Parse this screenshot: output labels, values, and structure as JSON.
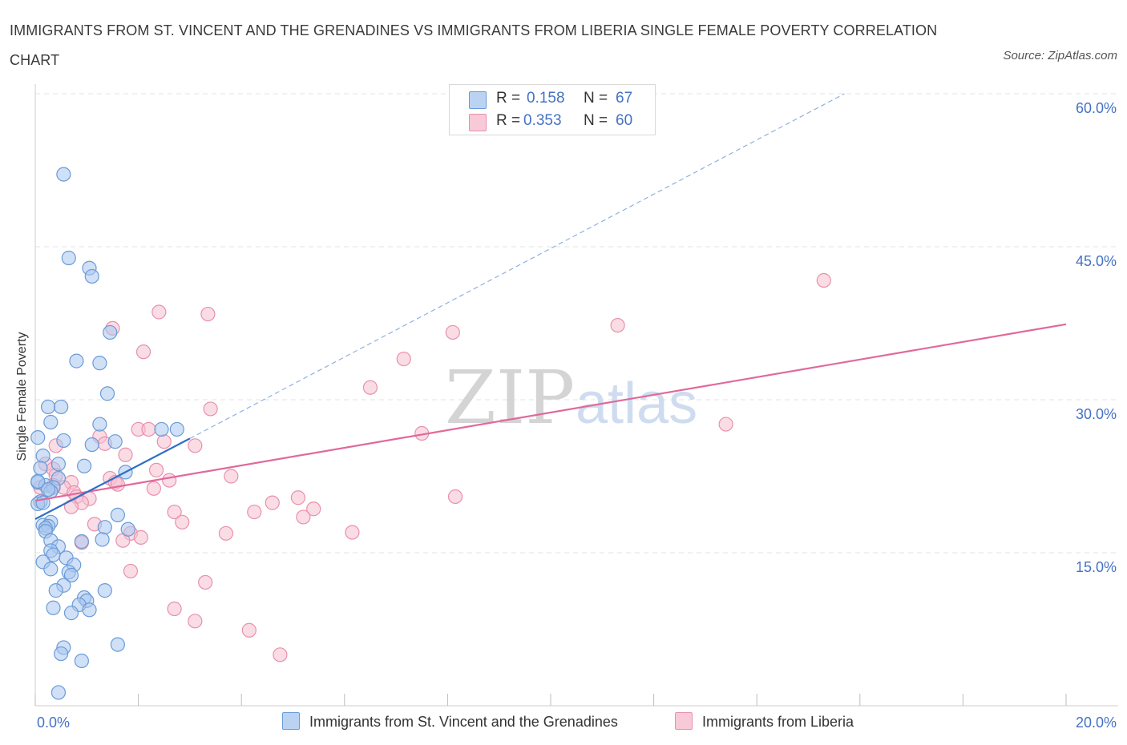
{
  "title": "IMMIGRANTS FROM ST. VINCENT AND THE GRENADINES VS IMMIGRANTS FROM LIBERIA SINGLE FEMALE POVERTY CORRELATION CHART",
  "source": "Source: ZipAtlas.com",
  "watermark": {
    "zip": "ZIP",
    "atlas": "atlas"
  },
  "colors": {
    "blue_fill": "#a9c7ef",
    "blue_stroke": "#6a9bd8",
    "blue_line": "#2f6fc7",
    "pink_fill": "#f6bfd0",
    "pink_stroke": "#e890ad",
    "pink_line": "#e0699a",
    "tick_text": "#4472c4",
    "grid": "#e3e3e3"
  },
  "legend": {
    "rows": [
      {
        "r_label": "R = ",
        "r_value": "0.158",
        "n_label": "N = ",
        "n_value": "67"
      },
      {
        "r_label": "R = ",
        "r_value": "0.353",
        "n_label": "N = ",
        "n_value": "60"
      }
    ]
  },
  "chart_data": {
    "type": "scatter",
    "xlabel": "",
    "ylabel": "Single Female Poverty",
    "xlim": [
      0,
      20
    ],
    "ylim": [
      0,
      60
    ],
    "x_ticks": [
      "0.0%",
      "20.0%"
    ],
    "y_ticks": [
      "15.0%",
      "30.0%",
      "45.0%",
      "60.0%"
    ],
    "y_tick_values": [
      15,
      30,
      45,
      60
    ],
    "grid": true,
    "legend_position": "top-center",
    "series": [
      {
        "name": "Immigrants from St. Vincent and the Grenadines",
        "color": "blue",
        "r": 0.158,
        "n": 67,
        "trend": {
          "x0": 0,
          "y0": 18.3,
          "x1": 3,
          "y1": 26.2,
          "dashed_to_x": 15.7,
          "dashed_to_y": 60
        },
        "points": [
          [
            0.55,
            52.1
          ],
          [
            0.65,
            43.9
          ],
          [
            1.05,
            42.9
          ],
          [
            1.1,
            42.1
          ],
          [
            1.45,
            36.6
          ],
          [
            0.8,
            33.8
          ],
          [
            1.25,
            33.6
          ],
          [
            1.4,
            30.6
          ],
          [
            0.25,
            29.3
          ],
          [
            0.5,
            29.3
          ],
          [
            0.3,
            27.8
          ],
          [
            1.25,
            27.6
          ],
          [
            2.45,
            27.1
          ],
          [
            2.75,
            27.1
          ],
          [
            0.05,
            26.3
          ],
          [
            0.55,
            26.0
          ],
          [
            1.1,
            25.6
          ],
          [
            1.55,
            25.9
          ],
          [
            0.15,
            24.5
          ],
          [
            0.1,
            23.3
          ],
          [
            0.45,
            23.7
          ],
          [
            0.95,
            23.5
          ],
          [
            1.75,
            22.9
          ],
          [
            0.45,
            22.3
          ],
          [
            0.05,
            21.9
          ],
          [
            0.2,
            21.6
          ],
          [
            0.35,
            21.4
          ],
          [
            0.3,
            21.0
          ],
          [
            0.1,
            20.0
          ],
          [
            0.05,
            19.8
          ],
          [
            0.15,
            19.9
          ],
          [
            1.6,
            18.7
          ],
          [
            0.3,
            18.0
          ],
          [
            0.15,
            17.7
          ],
          [
            0.25,
            17.6
          ],
          [
            0.2,
            17.4
          ],
          [
            0.2,
            17.1
          ],
          [
            1.35,
            17.5
          ],
          [
            1.8,
            17.3
          ],
          [
            0.3,
            16.2
          ],
          [
            1.3,
            16.3
          ],
          [
            0.45,
            15.6
          ],
          [
            0.9,
            16.1
          ],
          [
            0.3,
            15.2
          ],
          [
            0.35,
            14.8
          ],
          [
            0.6,
            14.5
          ],
          [
            0.15,
            14.1
          ],
          [
            0.75,
            13.8
          ],
          [
            0.3,
            13.4
          ],
          [
            0.65,
            13.1
          ],
          [
            0.7,
            12.8
          ],
          [
            0.55,
            11.8
          ],
          [
            0.4,
            11.3
          ],
          [
            1.35,
            11.3
          ],
          [
            0.95,
            10.6
          ],
          [
            1.0,
            10.3
          ],
          [
            0.85,
            9.9
          ],
          [
            1.05,
            9.4
          ],
          [
            0.35,
            9.6
          ],
          [
            0.7,
            9.1
          ],
          [
            1.6,
            6.0
          ],
          [
            0.55,
            5.7
          ],
          [
            0.5,
            5.1
          ],
          [
            0.9,
            4.4
          ],
          [
            0.45,
            1.3
          ],
          [
            0.05,
            22.0
          ],
          [
            0.25,
            21.2
          ]
        ]
      },
      {
        "name": "Immigrants from Liberia",
        "color": "pink",
        "r": 0.353,
        "n": 60,
        "trend": {
          "x0": 0,
          "y0": 20.1,
          "x1": 20,
          "y1": 37.4
        },
        "points": [
          [
            15.3,
            41.7
          ],
          [
            2.4,
            38.6
          ],
          [
            3.35,
            38.4
          ],
          [
            11.3,
            37.3
          ],
          [
            1.5,
            37.0
          ],
          [
            8.1,
            36.6
          ],
          [
            2.1,
            34.7
          ],
          [
            7.15,
            34.0
          ],
          [
            6.5,
            31.2
          ],
          [
            3.4,
            29.1
          ],
          [
            13.4,
            27.6
          ],
          [
            2.0,
            27.1
          ],
          [
            2.2,
            27.1
          ],
          [
            7.5,
            26.7
          ],
          [
            1.25,
            26.4
          ],
          [
            2.5,
            25.9
          ],
          [
            1.35,
            25.7
          ],
          [
            3.1,
            25.5
          ],
          [
            0.4,
            25.5
          ],
          [
            1.75,
            24.6
          ],
          [
            0.2,
            23.7
          ],
          [
            0.35,
            23.2
          ],
          [
            2.35,
            23.1
          ],
          [
            0.4,
            22.6
          ],
          [
            3.8,
            22.5
          ],
          [
            1.45,
            22.3
          ],
          [
            2.6,
            22.1
          ],
          [
            0.7,
            21.9
          ],
          [
            1.55,
            21.9
          ],
          [
            1.6,
            21.7
          ],
          [
            0.1,
            21.4
          ],
          [
            0.55,
            21.4
          ],
          [
            2.3,
            21.3
          ],
          [
            0.75,
            20.9
          ],
          [
            0.8,
            20.5
          ],
          [
            1.05,
            20.3
          ],
          [
            0.9,
            19.9
          ],
          [
            4.6,
            19.9
          ],
          [
            0.7,
            19.5
          ],
          [
            5.1,
            20.4
          ],
          [
            8.15,
            20.5
          ],
          [
            4.25,
            19.0
          ],
          [
            2.7,
            19.0
          ],
          [
            5.4,
            19.3
          ],
          [
            5.2,
            18.5
          ],
          [
            2.85,
            18.0
          ],
          [
            1.15,
            17.8
          ],
          [
            1.85,
            16.9
          ],
          [
            3.7,
            16.9
          ],
          [
            6.15,
            17.0
          ],
          [
            2.05,
            16.5
          ],
          [
            1.7,
            16.2
          ],
          [
            0.9,
            16.0
          ],
          [
            1.85,
            13.2
          ],
          [
            3.3,
            12.1
          ],
          [
            2.7,
            9.5
          ],
          [
            3.1,
            8.3
          ],
          [
            4.15,
            7.4
          ],
          [
            4.75,
            5.0
          ],
          [
            0.35,
            21.6
          ]
        ]
      }
    ]
  }
}
